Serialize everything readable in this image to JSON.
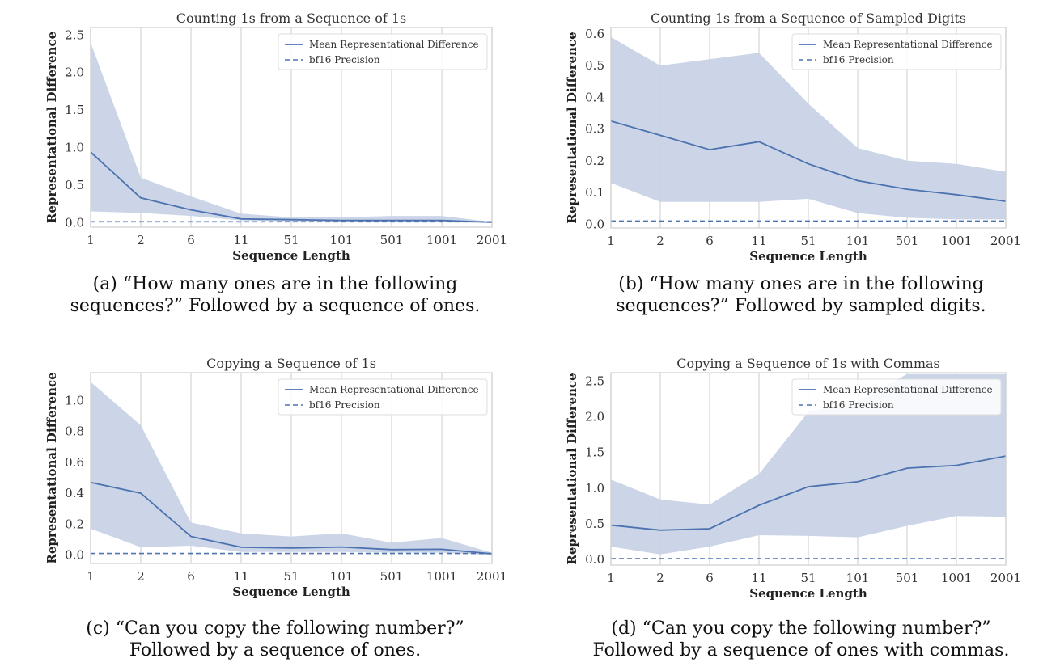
{
  "colors": {
    "line": "#4c72b0",
    "band": "#c8d3e6",
    "grid": "#d4d4d4",
    "frame": "#cfcfcf"
  },
  "chart_data": [
    {
      "type": "line",
      "title": "Counting 1s from a Sequence of 1s",
      "xlabel": "Sequence Length",
      "ylabel": "Representational Difference",
      "categories": [
        "1",
        "2",
        "6",
        "11",
        "51",
        "101",
        "501",
        "1001",
        "2001"
      ],
      "yticks": [
        "0.0",
        "0.5",
        "1.0",
        "1.5",
        "2.0",
        "2.5"
      ],
      "ytick_values": [
        0,
        0.5,
        1.0,
        1.5,
        2.0,
        2.5
      ],
      "ylim": [
        -0.06,
        2.6
      ],
      "series": [
        {
          "name": "Mean Representational Difference",
          "style": "solid",
          "values": [
            0.94,
            0.33,
            0.17,
            0.05,
            0.04,
            0.03,
            0.03,
            0.03,
            0.005
          ],
          "lower": [
            0.15,
            0.13,
            0.09,
            0.03,
            0.02,
            0.015,
            0.01,
            0.005,
            0.0
          ],
          "upper": [
            2.4,
            0.6,
            0.35,
            0.12,
            0.07,
            0.07,
            0.09,
            0.09,
            0.01
          ]
        },
        {
          "name": "bf16 Precision",
          "style": "dashed",
          "values": [
            0.012,
            0.012,
            0.012,
            0.012,
            0.012,
            0.012,
            0.012,
            0.012,
            0.012
          ]
        }
      ],
      "legend": "top-right",
      "grid": "vertical"
    },
    {
      "type": "line",
      "title": "Counting 1s from a Sequence of Sampled Digits",
      "xlabel": "Sequence Length",
      "ylabel": "Representational Difference",
      "categories": [
        "1",
        "2",
        "6",
        "11",
        "51",
        "101",
        "501",
        "1001",
        "2001"
      ],
      "yticks": [
        "0.0",
        "0.1",
        "0.2",
        "0.3",
        "0.4",
        "0.5",
        "0.6"
      ],
      "ytick_values": [
        0,
        0.1,
        0.2,
        0.3,
        0.4,
        0.5,
        0.6
      ],
      "ylim": [
        -0.012,
        0.62
      ],
      "series": [
        {
          "name": "Mean Representational Difference",
          "style": "solid",
          "values": [
            0.325,
            0.28,
            0.235,
            0.26,
            0.19,
            0.137,
            0.11,
            0.093,
            0.072
          ],
          "lower": [
            0.13,
            0.07,
            0.07,
            0.07,
            0.08,
            0.035,
            0.02,
            0.015,
            0.015
          ],
          "upper": [
            0.59,
            0.5,
            0.52,
            0.54,
            0.38,
            0.24,
            0.2,
            0.19,
            0.165
          ]
        },
        {
          "name": "bf16 Precision",
          "style": "dashed",
          "values": [
            0.01,
            0.01,
            0.01,
            0.01,
            0.01,
            0.01,
            0.01,
            0.01,
            0.01
          ]
        }
      ],
      "legend": "top-right",
      "grid": "vertical"
    },
    {
      "type": "line",
      "title": "Copying a Sequence of 1s",
      "xlabel": "Sequence Length",
      "ylabel": "Representational Difference",
      "categories": [
        "1",
        "2",
        "6",
        "11",
        "51",
        "101",
        "501",
        "1001",
        "2001"
      ],
      "yticks": [
        "0.0",
        "0.2",
        "0.4",
        "0.6",
        "0.8",
        "1.0"
      ],
      "ytick_values": [
        0,
        0.2,
        0.4,
        0.6,
        0.8,
        1.0
      ],
      "ylim": [
        -0.055,
        1.18
      ],
      "series": [
        {
          "name": "Mean Representational Difference",
          "style": "solid",
          "values": [
            0.47,
            0.4,
            0.12,
            0.05,
            0.045,
            0.052,
            0.035,
            0.037,
            0.008
          ],
          "lower": [
            0.17,
            0.05,
            0.06,
            0.02,
            0.02,
            0.02,
            0.015,
            0.015,
            0.0
          ],
          "upper": [
            1.12,
            0.84,
            0.21,
            0.14,
            0.12,
            0.14,
            0.08,
            0.11,
            0.015
          ]
        },
        {
          "name": "bf16 Precision",
          "style": "dashed",
          "values": [
            0.01,
            0.01,
            0.01,
            0.01,
            0.01,
            0.01,
            0.01,
            0.01,
            0.01
          ]
        }
      ],
      "legend": "top-right",
      "grid": "vertical"
    },
    {
      "type": "line",
      "title": "Copying a Sequence of 1s with Commas",
      "xlabel": "Sequence Length",
      "ylabel": "Representational Difference",
      "categories": [
        "1",
        "2",
        "6",
        "11",
        "51",
        "101",
        "501",
        "1001",
        "2001"
      ],
      "yticks": [
        "0.0",
        "0.5",
        "1.0",
        "1.5",
        "2.0",
        "2.5"
      ],
      "ytick_values": [
        0,
        0.5,
        1.0,
        1.5,
        2.0,
        2.5
      ],
      "ylim": [
        -0.08,
        2.62
      ],
      "series": [
        {
          "name": "Mean Representational Difference",
          "style": "solid",
          "values": [
            0.48,
            0.41,
            0.43,
            0.76,
            1.02,
            1.09,
            1.28,
            1.32,
            1.45
          ],
          "lower": [
            0.18,
            0.07,
            0.18,
            0.34,
            0.33,
            0.31,
            0.47,
            0.61,
            0.6
          ],
          "upper": [
            1.12,
            0.84,
            0.77,
            1.2,
            2.07,
            2.22,
            2.6,
            2.6,
            2.6
          ]
        },
        {
          "name": "bf16 Precision",
          "style": "dashed",
          "values": [
            0.01,
            0.01,
            0.01,
            0.01,
            0.01,
            0.01,
            0.01,
            0.01,
            0.01
          ]
        }
      ],
      "legend": "top-right",
      "grid": "vertical"
    }
  ],
  "captions": [
    {
      "line1": "(a) “How many ones are in the following",
      "line2": "sequences?” Followed by a sequence of ones."
    },
    {
      "line1": "(b) “How many ones are in the following",
      "line2": "sequences?” Followed by sampled digits."
    },
    {
      "line1": "(c) “Can you copy the following number?”",
      "line2": "Followed by a sequence of ones."
    },
    {
      "line1": "(d) “Can you copy the following number?”",
      "line2": "Followed by a sequence of ones with commas."
    }
  ]
}
